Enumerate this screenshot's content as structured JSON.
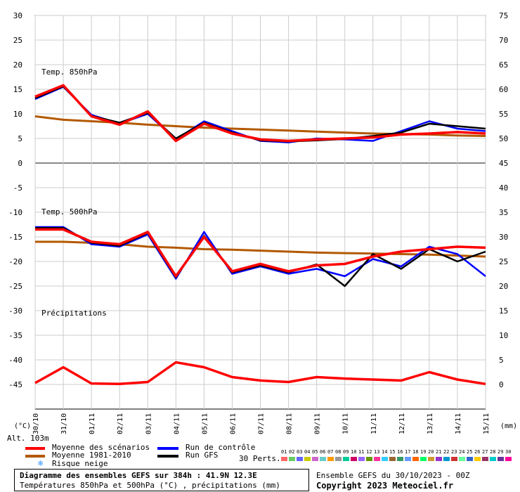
{
  "chart_data": {
    "type": "line",
    "x_dates": [
      "30/10",
      "31/10",
      "01/11",
      "02/11",
      "03/11",
      "04/11",
      "05/11",
      "06/11",
      "07/11",
      "08/11",
      "09/11",
      "10/11",
      "11/11",
      "12/11",
      "13/11",
      "14/11",
      "15/11"
    ],
    "left_axis": {
      "ticks": [
        "30",
        "25",
        "20",
        "15",
        "10",
        "5",
        "0",
        "-5",
        "-10",
        "-15",
        "-20",
        "-25",
        "-30",
        "-35",
        "-40",
        "-45"
      ],
      "unit": "(°C)"
    },
    "right_axis": {
      "ticks": [
        "75",
        "70",
        "65",
        "60",
        "55",
        "50",
        "45",
        "40",
        "35",
        "30",
        "25",
        "20",
        "15",
        "10",
        "5",
        "0"
      ],
      "unit": "(mm)"
    },
    "panel_labels": {
      "t850": "Temp. 850hPa",
      "t500": "Temp. 500hPa",
      "precip": "Précipitations"
    },
    "series": [
      {
        "name": "Moyenne des scénarios",
        "color": "#ff0000",
        "t850": [
          13.5,
          15.8,
          9.5,
          7.8,
          10.5,
          4.5,
          8.0,
          6.0,
          4.8,
          4.5,
          4.8,
          5.0,
          5.2,
          5.8,
          6.0,
          6.3,
          6.0
        ],
        "t500": [
          -13.5,
          -13.5,
          -16.0,
          -16.5,
          -14.0,
          -23.0,
          -15.0,
          -22.0,
          -20.5,
          -22.0,
          -20.8,
          -20.5,
          -19.0,
          -18.0,
          -17.5,
          -17.0,
          -17.2
        ],
        "precip": [
          0.3,
          3.5,
          0.2,
          0.1,
          0.5,
          4.5,
          3.5,
          1.5,
          0.8,
          0.5,
          1.5,
          1.2,
          1.0,
          0.8,
          2.5,
          1.0,
          0.1
        ]
      },
      {
        "name": "Moyenne 1981-2010",
        "color": "#b35900",
        "t850": [
          9.5,
          8.8,
          8.5,
          8.2,
          7.8,
          7.5,
          7.2,
          7.0,
          6.8,
          6.6,
          6.4,
          6.2,
          6.0,
          5.9,
          5.8,
          5.6,
          5.5
        ],
        "t500": [
          -16.0,
          -16.0,
          -16.2,
          -16.5,
          -17.0,
          -17.2,
          -17.5,
          -17.6,
          -17.8,
          -18.0,
          -18.2,
          -18.3,
          -18.4,
          -18.5,
          -18.6,
          -18.8,
          -19.0
        ]
      },
      {
        "name": "Run de contrôle",
        "color": "#0000ff",
        "t850": [
          13.0,
          15.5,
          9.8,
          8.0,
          10.0,
          4.8,
          8.5,
          6.5,
          4.5,
          4.2,
          5.0,
          4.8,
          4.5,
          6.5,
          8.5,
          7.0,
          6.5
        ],
        "t500": [
          -13.0,
          -13.0,
          -16.5,
          -17.0,
          -14.5,
          -23.5,
          -14.0,
          -22.5,
          -21.0,
          -22.5,
          -21.5,
          -23.0,
          -19.5,
          -21.0,
          -17.0,
          -18.5,
          -23.0
        ]
      },
      {
        "name": "Run GFS",
        "color": "#000000",
        "t850": [
          13.2,
          15.6,
          9.6,
          8.2,
          10.2,
          5.0,
          8.2,
          6.2,
          4.6,
          4.4,
          4.6,
          4.9,
          5.5,
          6.2,
          8.0,
          7.5,
          7.0
        ],
        "t500": [
          -13.2,
          -13.2,
          -16.2,
          -16.8,
          -14.2,
          -23.2,
          -14.8,
          -22.2,
          -20.8,
          -22.2,
          -20.6,
          -25.0,
          -18.5,
          -21.5,
          -17.5,
          -20.0,
          -18.0
        ]
      }
    ]
  },
  "legend": {
    "alt_label": "Alt. 103m",
    "mean_label": "Moyenne des scénarios",
    "clim_label": "Moyenne 1981-2010",
    "snow_label": "Risque neige",
    "control_label": "Run de contrôle",
    "gfs_label": "Run GFS",
    "perts_label": "30 Perts.",
    "pert_numbers": [
      "01",
      "02",
      "03",
      "04",
      "05",
      "06",
      "07",
      "08",
      "09",
      "10",
      "11",
      "12",
      "13",
      "14",
      "15",
      "16",
      "17",
      "18",
      "19",
      "20",
      "21",
      "22",
      "23",
      "24",
      "25",
      "26",
      "27",
      "28",
      "29",
      "30"
    ],
    "pert_colors": [
      "#ff6666",
      "#66cc66",
      "#6666ff",
      "#cccc00",
      "#cc66cc",
      "#66cccc",
      "#ff9900",
      "#999999",
      "#00cc99",
      "#cc0066",
      "#9966ff",
      "#669900",
      "#ff3399",
      "#33ccff",
      "#996633",
      "#339966",
      "#6699ff",
      "#ff6600",
      "#00ff66",
      "#cc9933",
      "#9933cc",
      "#0099cc",
      "#cc3333",
      "#66ff99",
      "#3366cc",
      "#ffcc00",
      "#993366",
      "#00cccc",
      "#663399",
      "#ff0099"
    ]
  },
  "footer": {
    "title": "Diagramme des ensembles GEFS sur 384h : 41.9N 12.3E",
    "subtitle": "Températures 850hPa et 500hPa (°C) , précipitations (mm)",
    "ensemble_info": "Ensemble GEFS du 30/10/2023 - 00Z",
    "copyright": "Copyright 2023 Meteociel.fr"
  }
}
